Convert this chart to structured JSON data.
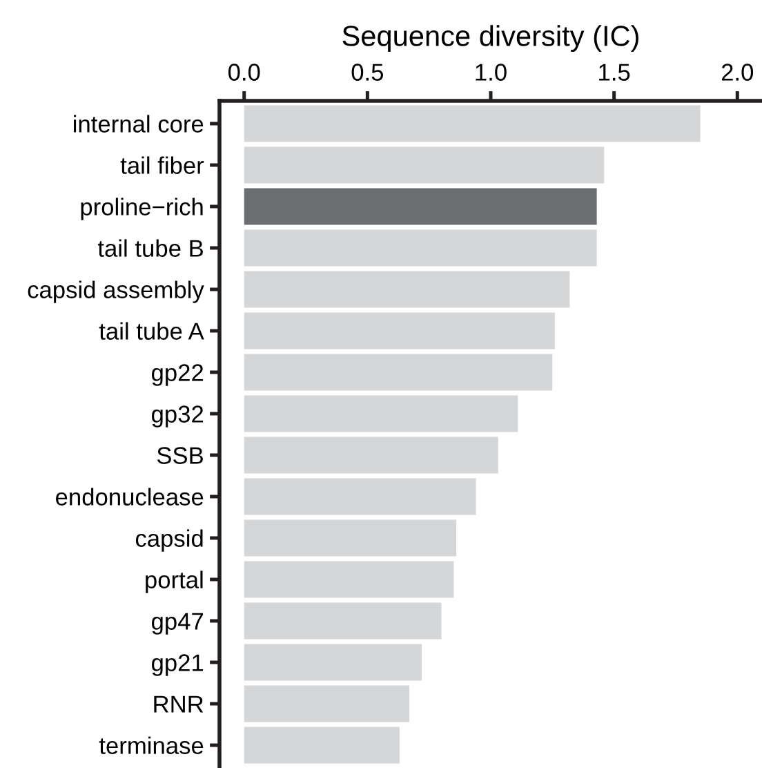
{
  "chart_data": {
    "type": "bar",
    "orientation": "horizontal",
    "xlabel": "Sequence diversity (IC)",
    "categories": [
      "internal core",
      "tail fiber",
      "proline−rich",
      "tail tube B",
      "capsid assembly",
      "tail tube A",
      "gp22",
      "gp32",
      "SSB",
      "endonuclease",
      "capsid",
      "portal",
      "gp47",
      "gp21",
      "RNR",
      "terminase"
    ],
    "values": [
      1.85,
      1.46,
      1.43,
      1.43,
      1.32,
      1.26,
      1.25,
      1.11,
      1.03,
      0.94,
      0.86,
      0.85,
      0.8,
      0.72,
      0.67,
      0.63
    ],
    "colors": [
      "#d5d6d8",
      "#d5d6d8",
      "#6d6e71",
      "#d5d6d8",
      "#d5d6d8",
      "#d5d6d8",
      "#d5d6d8",
      "#d5d6d8",
      "#d5d6d8",
      "#d5d6d8",
      "#d5d6d8",
      "#d5d6d8",
      "#d5d6d8",
      "#d5d6d8",
      "#d5d6d8",
      "#d5d6d8"
    ],
    "xlim": [
      -0.1,
      2.1
    ],
    "xticks": [
      {
        "value": 0,
        "label": "0.0"
      },
      {
        "value": 0.5,
        "label": "0.5"
      },
      {
        "value": 1,
        "label": "1.0"
      },
      {
        "value": 1.5,
        "label": "1.5"
      },
      {
        "value": 2,
        "label": "2.0"
      }
    ],
    "grid": false,
    "legend": false
  }
}
